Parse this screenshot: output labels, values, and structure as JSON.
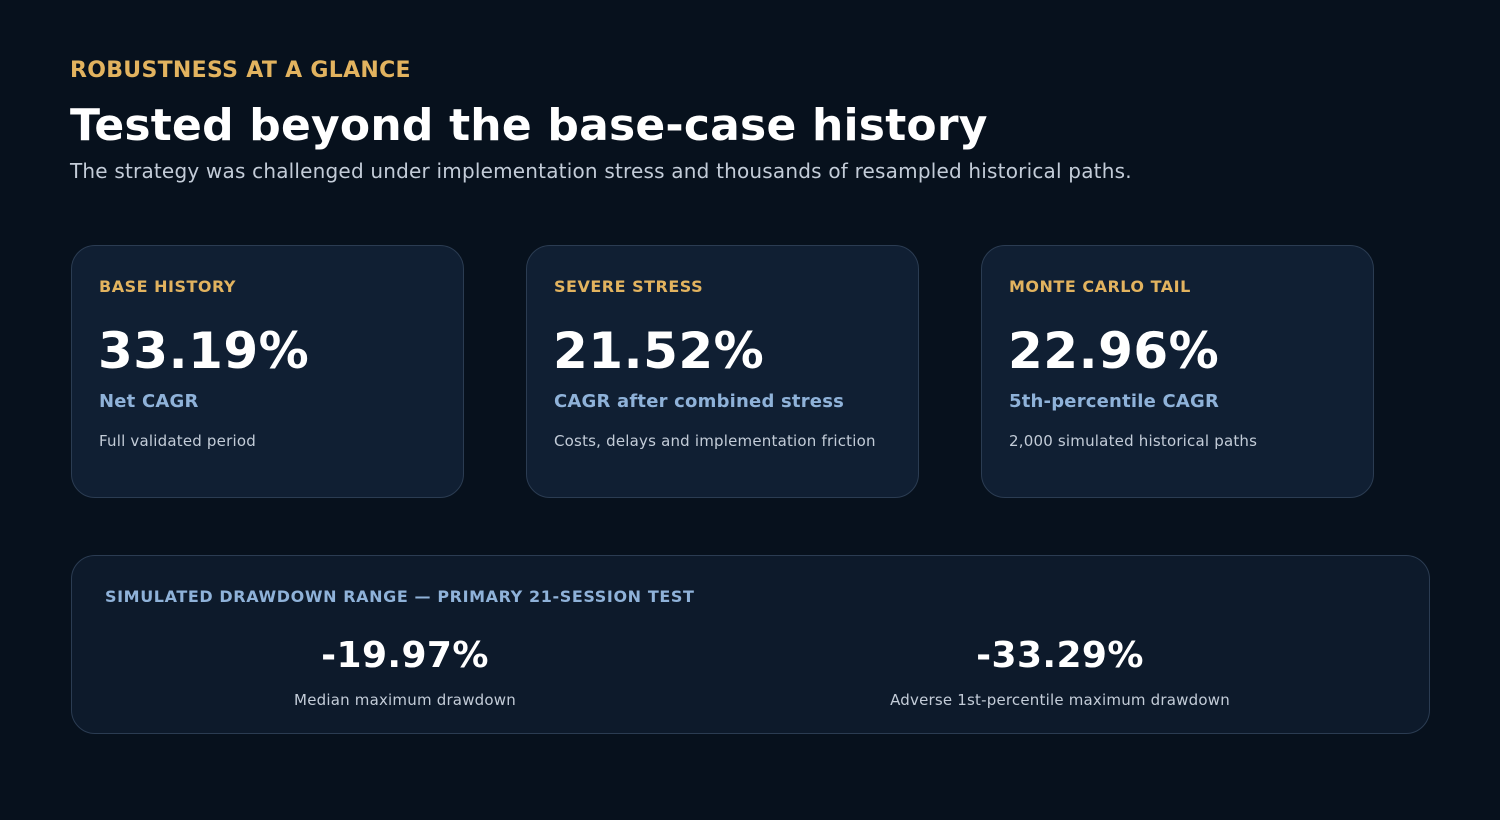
{
  "header": {
    "eyebrow": "ROBUSTNESS AT A GLANCE",
    "title": "Tested beyond the base-case history",
    "subtitle": "The strategy was challenged under implementation stress and thousands of resampled historical paths."
  },
  "cards": [
    {
      "label": "BASE HISTORY",
      "value": "33.19%",
      "metric": "Net CAGR",
      "note": "Full validated period"
    },
    {
      "label": "SEVERE STRESS",
      "value": "21.52%",
      "metric": "CAGR after combined stress",
      "note": "Costs, delays and implementation friction"
    },
    {
      "label": "MONTE CARLO TAIL",
      "value": "22.96%",
      "metric": "5th-percentile CAGR",
      "note": "2,000 simulated historical paths"
    }
  ],
  "drawdown": {
    "title": "SIMULATED DRAWDOWN RANGE — PRIMARY 21-SESSION TEST",
    "stats": [
      {
        "value": "-19.97%",
        "caption": "Median maximum drawdown"
      },
      {
        "value": "-33.29%",
        "caption": "Adverse 1st-percentile maximum drawdown"
      }
    ]
  },
  "colors": {
    "background": "#07111d",
    "accent_gold": "#e2b35f",
    "accent_blue": "#8fb2d9",
    "card_background": "#101f33"
  }
}
